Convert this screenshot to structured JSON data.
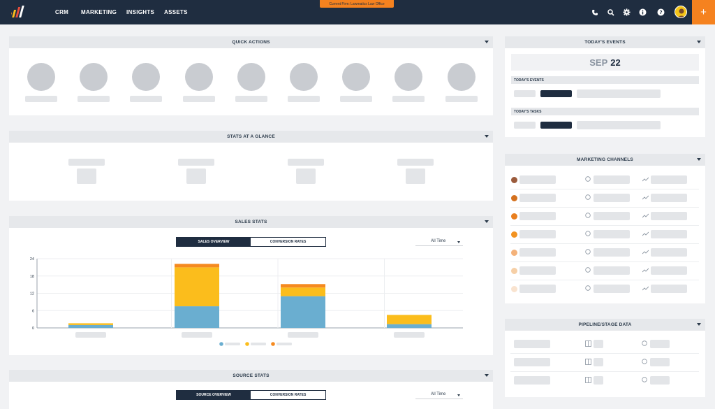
{
  "nav": {
    "items": [
      "CRM",
      "MARKETING",
      "INSIGHTS",
      "ASSETS"
    ],
    "org_banner": "Current Firm: Lawmatics Law Office",
    "icons": [
      "phone-icon",
      "search-icon",
      "gear-icon",
      "info-icon",
      "help-icon"
    ],
    "add_label": "+"
  },
  "quick_actions": {
    "title": "QUICK ACTIONS",
    "count": 9
  },
  "stats_glance": {
    "title": "STATS AT A GLANCE"
  },
  "sales_stats": {
    "title": "SALES STATS",
    "tabs": [
      "SALES OVERVIEW",
      "CONVERSION RATES"
    ],
    "range": "All Time"
  },
  "chart_data": {
    "type": "bar",
    "stacked": true,
    "ylim": [
      0,
      24
    ],
    "yticks": [
      "24",
      "18",
      "12",
      "6",
      "0"
    ],
    "categories": [
      "",
      "",
      "",
      ""
    ],
    "series": [
      {
        "color": "#6aaed0",
        "values": [
          1,
          7.5,
          11,
          1.3
        ]
      },
      {
        "color": "#fbbd1c",
        "values": [
          0.6,
          13.5,
          3,
          3.2
        ]
      },
      {
        "color": "#f58a20",
        "values": [
          0,
          1.2,
          1.2,
          0
        ]
      }
    ],
    "grid": true
  },
  "source_stats": {
    "title": "SOURCE STATS",
    "tabs": [
      "SOURCE OVERVIEW",
      "CONVERSION RATES"
    ],
    "range": "All Time"
  },
  "events": {
    "title": "TODAY'S EVENTS",
    "month": "SEP",
    "day": "22",
    "events_label": "TODAY'S EVENTS",
    "tasks_label": "TODAY'S TASKS"
  },
  "marketing_channels": {
    "title": "MARKETING CHANNELS",
    "dot_colors": [
      "#9b5b3c",
      "#d4711e",
      "#e97f1f",
      "#f29322",
      "#f4b27a",
      "#f6cfa6",
      "#f9e3cf"
    ]
  },
  "pipeline": {
    "title": "PIPELINE/STAGE DATA"
  }
}
